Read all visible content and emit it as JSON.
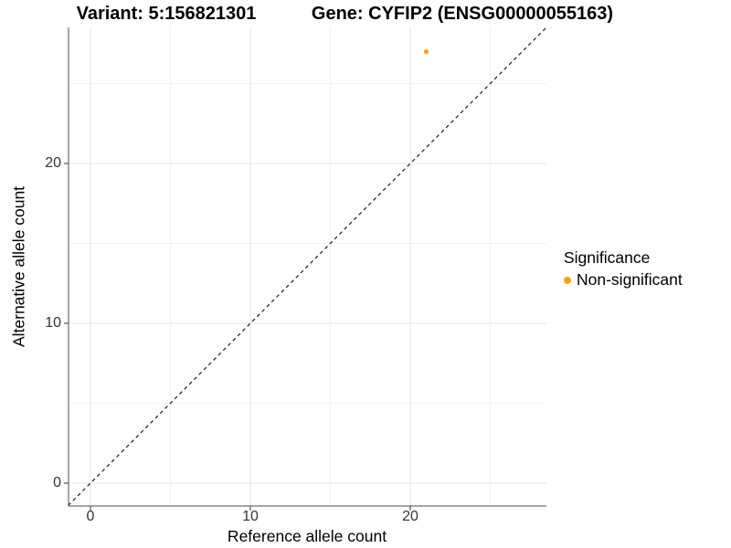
{
  "titles": {
    "variant": "Variant: 5:156821301",
    "gene": "Gene: CYFIP2 (ENSG00000055163)"
  },
  "chart_data": {
    "type": "scatter",
    "xlabel": "Reference allele count",
    "ylabel": "Alternative allele count",
    "xlim": [
      -1.4,
      28.5
    ],
    "ylim": [
      -1.4,
      28.5
    ],
    "x_ticks": [
      0,
      10,
      20
    ],
    "y_ticks": [
      0,
      10,
      20
    ],
    "x_minor_ticks": [
      5,
      15,
      25
    ],
    "y_minor_ticks": [
      5,
      15,
      25
    ],
    "grid": true,
    "identity_line": {
      "style": "dashed",
      "from": [
        -1.4,
        -1.4
      ],
      "to": [
        28.5,
        28.5
      ],
      "color": "#1a1a1a"
    },
    "series": [
      {
        "name": "Non-significant",
        "color": "#FFA500",
        "points": [
          [
            21,
            27
          ]
        ]
      }
    ],
    "legend": {
      "title": "Significance",
      "position": "right",
      "entries": [
        {
          "label": "Non-significant",
          "color": "#FFA500"
        }
      ]
    },
    "colors": {
      "grid_major": "#e4e4e4",
      "grid_minor": "#f2f2f2",
      "axis_line": "#4d4d4d",
      "tick_mark": "#333333",
      "panel_background": "#ffffff"
    }
  }
}
